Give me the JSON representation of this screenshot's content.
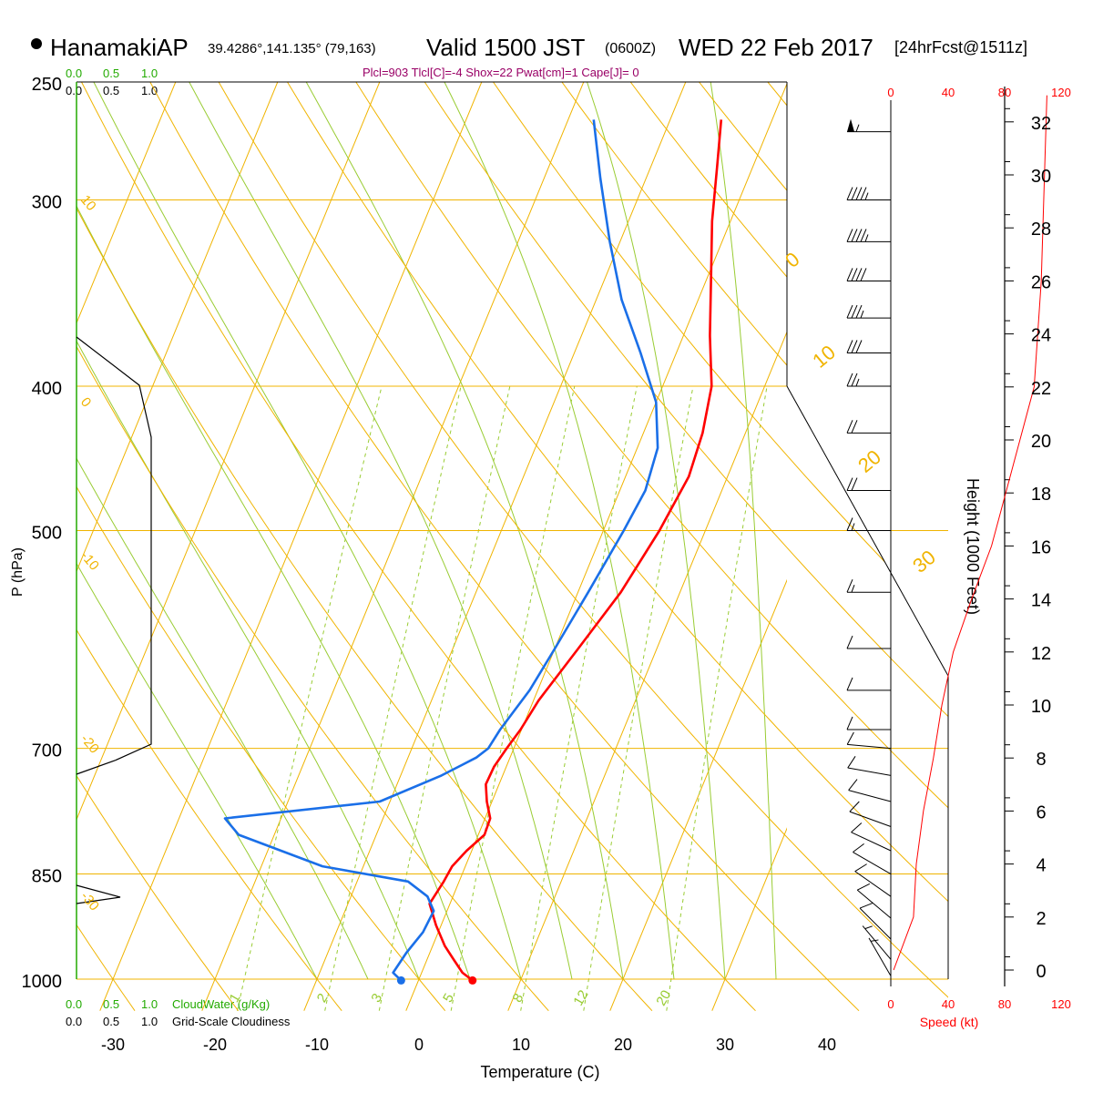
{
  "header": {
    "station": "HanamakiAP",
    "coords": "39.4286°,141.135° (79,163)",
    "valid_prefix": "Valid 1500 JST",
    "zulu": "(0600Z)",
    "date": "WED 22 Feb 2017",
    "forecast": "[24hrFcst@1511z]",
    "indices": "Plcl=903 Tlcl[C]=-4 Shox=22 Pwat[cm]=1 Cape[J]= 0"
  },
  "colors": {
    "temperature": "#ff0000",
    "dewpoint": "#1a6fe8",
    "isotherm": "#f0b400",
    "dry_adiabat": "#f0b400",
    "moist_adiabat": "#99cc33",
    "mixing_ratio": "#99cc33",
    "cloud_water": "#22aa00",
    "speed": "#ff0000",
    "indices": "#990066"
  },
  "cloud_scale": {
    "top_green": [
      "0.0",
      "0.5",
      "1.0"
    ],
    "top_black": [
      "0.0",
      "0.5",
      "1.0"
    ],
    "bottom_green": [
      "0.0",
      "0.5",
      "1.0"
    ],
    "bottom_black": [
      "0.0",
      "0.5",
      "1.0"
    ],
    "cloudwater_label": "CloudWater (g/Kg)",
    "cloudiness_label": "Grid-Scale Cloudiness"
  },
  "speed_scale": {
    "ticks": [
      "0",
      "40",
      "80",
      "120"
    ],
    "label": "Speed (kt)"
  },
  "chart_data": {
    "type": "line",
    "title": "HanamakiAP Valid 1500 JST (0600Z) WED 22 Feb 2017",
    "xlabel": "Temperature (C)",
    "ylabel": "P (hPa)",
    "y2label": "Height (1000 Feet)",
    "xlim": [
      -34,
      36
    ],
    "ylim": [
      1050,
      250
    ],
    "x_ticks": [
      "-30",
      "-20",
      "-10",
      "0",
      "10",
      "20",
      "30",
      "40"
    ],
    "pressure_ticks": [
      "250",
      "300",
      "400",
      "500",
      "700",
      "850",
      "1000"
    ],
    "height_ticks": [
      "0",
      "2",
      "4",
      "6",
      "8",
      "10",
      "12",
      "14",
      "16",
      "18",
      "20",
      "22",
      "24",
      "26",
      "28",
      "30",
      "32"
    ],
    "theta_labels": [
      "10",
      "0",
      "-10",
      "-20",
      "-30"
    ],
    "right_theta_labels": [
      "0",
      "10",
      "20",
      "30"
    ],
    "mixing_ratio_labels": [
      "1",
      "2",
      "3",
      "5",
      "8",
      "12",
      "20"
    ],
    "series": [
      {
        "name": "Temperature",
        "p": [
          1002,
          990,
          970,
          950,
          920,
          890,
          860,
          840,
          820,
          800,
          780,
          760,
          740,
          720,
          700,
          680,
          650,
          600,
          550,
          500,
          460,
          430,
          400,
          370,
          340,
          310,
          285,
          265
        ],
        "t": [
          5.3,
          4,
          2.6,
          1.2,
          -0.5,
          -2,
          -1.5,
          -1.3,
          -0.5,
          0.6,
          0.5,
          -0.5,
          -1.3,
          -1.2,
          -0.7,
          -0.1,
          0.5,
          2.3,
          4.2,
          5.5,
          6.2,
          5.8,
          4.8,
          2.6,
          0.5,
          -1.8,
          -3.5,
          -5.0
        ]
      },
      {
        "name": "Dew point",
        "p": [
          1002,
          990,
          960,
          930,
          900,
          880,
          860,
          840,
          800,
          780,
          760,
          730,
          710,
          700,
          680,
          640,
          600,
          550,
          500,
          470,
          440,
          410,
          380,
          350,
          320,
          290,
          265
        ],
        "t": [
          -1.7,
          -2.8,
          -2.3,
          -1.5,
          -1.3,
          -2.5,
          -5,
          -14,
          -23.5,
          -25.5,
          -11,
          -6,
          -3.3,
          -2.5,
          -2.1,
          -0.8,
          0,
          1,
          2,
          2.5,
          2.0,
          0,
          -3.5,
          -7.5,
          -11,
          -14.5,
          -17.5
        ]
      },
      {
        "name": "Height",
        "x_kt": [
          2,
          16,
          18,
          23,
          30,
          36,
          44,
          57,
          71,
          81,
          91,
          101,
          106
        ],
        "kft": [
          0,
          2,
          4,
          6,
          8,
          10,
          12,
          14,
          16,
          18,
          20,
          22,
          26
        ]
      }
    ],
    "winds": [
      {
        "p": 270,
        "spd": 55,
        "dir": 270
      },
      {
        "p": 300,
        "spd": 45,
        "dir": 270
      },
      {
        "p": 320,
        "spd": 45,
        "dir": 270
      },
      {
        "p": 340,
        "spd": 40,
        "dir": 270
      },
      {
        "p": 360,
        "spd": 35,
        "dir": 270
      },
      {
        "p": 380,
        "spd": 30,
        "dir": 270
      },
      {
        "p": 400,
        "spd": 25,
        "dir": 270
      },
      {
        "p": 430,
        "spd": 20,
        "dir": 270
      },
      {
        "p": 470,
        "spd": 20,
        "dir": 270
      },
      {
        "p": 500,
        "spd": 15,
        "dir": 270
      },
      {
        "p": 550,
        "spd": 15,
        "dir": 270
      },
      {
        "p": 600,
        "spd": 10,
        "dir": 270
      },
      {
        "p": 640,
        "spd": 10,
        "dir": 270
      },
      {
        "p": 680,
        "spd": 10,
        "dir": 270
      },
      {
        "p": 700,
        "spd": 10,
        "dir": 275
      },
      {
        "p": 730,
        "spd": 10,
        "dir": 280
      },
      {
        "p": 760,
        "spd": 10,
        "dir": 285
      },
      {
        "p": 790,
        "spd": 10,
        "dir": 290
      },
      {
        "p": 820,
        "spd": 10,
        "dir": 295
      },
      {
        "p": 850,
        "spd": 10,
        "dir": 300
      },
      {
        "p": 880,
        "spd": 10,
        "dir": 305
      },
      {
        "p": 910,
        "spd": 10,
        "dir": 310
      },
      {
        "p": 940,
        "spd": 10,
        "dir": 315
      },
      {
        "p": 970,
        "spd": 5,
        "dir": 320
      },
      {
        "p": 995,
        "spd": 5,
        "dir": 330
      }
    ],
    "grid": true
  }
}
